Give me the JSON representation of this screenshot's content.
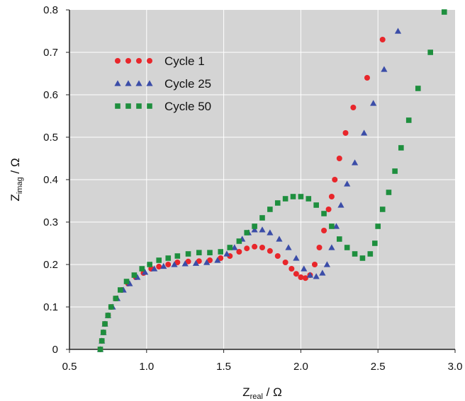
{
  "chart_data": {
    "type": "scatter",
    "xlabel_main": "Z",
    "xlabel_sub": "real",
    "xlabel_unit": " / Ω",
    "ylabel_main": "Z",
    "ylabel_sub": "imag",
    "ylabel_unit": " / Ω",
    "xlim": [
      0.5,
      3.0
    ],
    "ylim": [
      0,
      0.8
    ],
    "xticks": [
      "0.5",
      "1.0",
      "1.5",
      "2.0",
      "2.5",
      "3.0"
    ],
    "yticks": [
      "0",
      "0.1",
      "0.2",
      "0.3",
      "0.4",
      "0.5",
      "0.6",
      "0.7",
      "0.8"
    ],
    "grid": true,
    "background": "#d4d4d4",
    "legend_position": "top-left",
    "series": [
      {
        "name": "Cycle 1",
        "marker": "circle",
        "color": "#e8262b",
        "points": [
          [
            0.7,
            0.0
          ],
          [
            0.71,
            0.02
          ],
          [
            0.72,
            0.04
          ],
          [
            0.73,
            0.06
          ],
          [
            0.75,
            0.08
          ],
          [
            0.77,
            0.1
          ],
          [
            0.8,
            0.12
          ],
          [
            0.84,
            0.14
          ],
          [
            0.88,
            0.155
          ],
          [
            0.93,
            0.17
          ],
          [
            0.98,
            0.18
          ],
          [
            1.03,
            0.19
          ],
          [
            1.08,
            0.195
          ],
          [
            1.14,
            0.2
          ],
          [
            1.2,
            0.205
          ],
          [
            1.27,
            0.207
          ],
          [
            1.34,
            0.208
          ],
          [
            1.41,
            0.21
          ],
          [
            1.48,
            0.215
          ],
          [
            1.54,
            0.22
          ],
          [
            1.6,
            0.23
          ],
          [
            1.65,
            0.238
          ],
          [
            1.7,
            0.242
          ],
          [
            1.75,
            0.24
          ],
          [
            1.8,
            0.232
          ],
          [
            1.85,
            0.22
          ],
          [
            1.9,
            0.205
          ],
          [
            1.94,
            0.19
          ],
          [
            1.97,
            0.178
          ],
          [
            2.0,
            0.17
          ],
          [
            2.03,
            0.168
          ],
          [
            2.06,
            0.175
          ],
          [
            2.09,
            0.2
          ],
          [
            2.12,
            0.24
          ],
          [
            2.15,
            0.28
          ],
          [
            2.18,
            0.33
          ],
          [
            2.2,
            0.36
          ],
          [
            2.22,
            0.4
          ],
          [
            2.25,
            0.45
          ],
          [
            2.29,
            0.51
          ],
          [
            2.34,
            0.57
          ],
          [
            2.43,
            0.64
          ],
          [
            2.53,
            0.73
          ]
        ]
      },
      {
        "name": "Cycle 25",
        "marker": "triangle",
        "color": "#3b4da8",
        "points": [
          [
            0.7,
            0.0
          ],
          [
            0.71,
            0.02
          ],
          [
            0.72,
            0.04
          ],
          [
            0.73,
            0.06
          ],
          [
            0.75,
            0.08
          ],
          [
            0.78,
            0.1
          ],
          [
            0.81,
            0.12
          ],
          [
            0.85,
            0.14
          ],
          [
            0.89,
            0.155
          ],
          [
            0.94,
            0.17
          ],
          [
            0.99,
            0.182
          ],
          [
            1.05,
            0.19
          ],
          [
            1.11,
            0.196
          ],
          [
            1.18,
            0.2
          ],
          [
            1.25,
            0.202
          ],
          [
            1.32,
            0.203
          ],
          [
            1.39,
            0.205
          ],
          [
            1.46,
            0.21
          ],
          [
            1.52,
            0.225
          ],
          [
            1.57,
            0.24
          ],
          [
            1.62,
            0.26
          ],
          [
            1.66,
            0.275
          ],
          [
            1.7,
            0.282
          ],
          [
            1.75,
            0.282
          ],
          [
            1.8,
            0.275
          ],
          [
            1.86,
            0.26
          ],
          [
            1.92,
            0.24
          ],
          [
            1.97,
            0.215
          ],
          [
            2.02,
            0.19
          ],
          [
            2.06,
            0.175
          ],
          [
            2.1,
            0.172
          ],
          [
            2.14,
            0.18
          ],
          [
            2.17,
            0.2
          ],
          [
            2.2,
            0.24
          ],
          [
            2.23,
            0.29
          ],
          [
            2.26,
            0.34
          ],
          [
            2.3,
            0.39
          ],
          [
            2.35,
            0.44
          ],
          [
            2.41,
            0.51
          ],
          [
            2.47,
            0.58
          ],
          [
            2.54,
            0.66
          ],
          [
            2.63,
            0.75
          ]
        ]
      },
      {
        "name": "Cycle 50",
        "marker": "square",
        "color": "#1e8f3e",
        "points": [
          [
            0.7,
            0.0
          ],
          [
            0.71,
            0.02
          ],
          [
            0.72,
            0.04
          ],
          [
            0.73,
            0.06
          ],
          [
            0.75,
            0.08
          ],
          [
            0.77,
            0.1
          ],
          [
            0.8,
            0.12
          ],
          [
            0.83,
            0.14
          ],
          [
            0.87,
            0.16
          ],
          [
            0.92,
            0.175
          ],
          [
            0.97,
            0.19
          ],
          [
            1.02,
            0.2
          ],
          [
            1.08,
            0.21
          ],
          [
            1.14,
            0.215
          ],
          [
            1.2,
            0.22
          ],
          [
            1.27,
            0.225
          ],
          [
            1.34,
            0.228
          ],
          [
            1.41,
            0.228
          ],
          [
            1.48,
            0.23
          ],
          [
            1.54,
            0.24
          ],
          [
            1.6,
            0.255
          ],
          [
            1.65,
            0.275
          ],
          [
            1.7,
            0.29
          ],
          [
            1.75,
            0.31
          ],
          [
            1.8,
            0.33
          ],
          [
            1.85,
            0.345
          ],
          [
            1.9,
            0.355
          ],
          [
            1.95,
            0.36
          ],
          [
            2.0,
            0.36
          ],
          [
            2.05,
            0.355
          ],
          [
            2.1,
            0.34
          ],
          [
            2.15,
            0.32
          ],
          [
            2.2,
            0.29
          ],
          [
            2.25,
            0.26
          ],
          [
            2.3,
            0.24
          ],
          [
            2.35,
            0.225
          ],
          [
            2.4,
            0.215
          ],
          [
            2.45,
            0.225
          ],
          [
            2.48,
            0.25
          ],
          [
            2.5,
            0.29
          ],
          [
            2.53,
            0.33
          ],
          [
            2.57,
            0.37
          ],
          [
            2.61,
            0.42
          ],
          [
            2.65,
            0.475
          ],
          [
            2.7,
            0.54
          ],
          [
            2.76,
            0.615
          ],
          [
            2.84,
            0.7
          ],
          [
            2.93,
            0.795
          ]
        ]
      }
    ]
  }
}
